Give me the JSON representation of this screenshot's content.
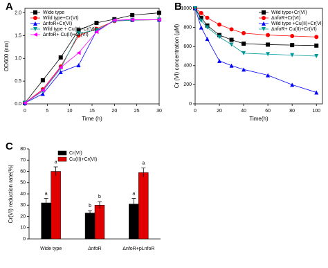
{
  "chart_data": [
    {
      "type": "line",
      "label": "A",
      "xlabel": "Time (h)",
      "ylabel": "OD600 (nm)",
      "x": [
        0,
        4,
        8,
        12,
        16,
        20,
        24,
        30
      ],
      "xlim": [
        0,
        30
      ],
      "xticks": [
        0,
        5,
        10,
        15,
        20,
        25,
        30
      ],
      "ylim": [
        0,
        2.1
      ],
      "yticks": [
        {
          "value": 0,
          "label": "0.0"
        },
        {
          "value": 0.5,
          "label": "0.5"
        },
        {
          "value": 1,
          "label": "1.0"
        },
        {
          "value": 1.5,
          "label": "1.5"
        },
        {
          "value": 2,
          "label": "2.0"
        }
      ],
      "legend": "upper left",
      "series": [
        {
          "name": "Wide type",
          "color": "#000000",
          "marker": "square",
          "values": [
            0.02,
            0.52,
            1.02,
            1.62,
            1.78,
            1.86,
            1.95,
            2.0
          ]
        },
        {
          "name": "Wild type+Cr(VI)",
          "color": "#ff0000",
          "marker": "circle",
          "values": [
            0.02,
            0.32,
            0.82,
            1.5,
            1.65,
            1.82,
            1.84,
            1.85
          ]
        },
        {
          "name": "ΔnfoR+Cr(VI)",
          "color": "#0000ff",
          "marker": "triangle-up",
          "values": [
            0.02,
            0.22,
            0.7,
            0.85,
            1.6,
            1.84,
            1.85,
            1.85
          ]
        },
        {
          "name": "Wild type + Cu(II)+Cr(VI)",
          "color": "#009999",
          "marker": "triangle-down",
          "values": [
            0.02,
            0.28,
            0.78,
            1.55,
            1.62,
            1.82,
            1.84,
            1.85
          ]
        },
        {
          "name": "ΔnfoR+ Cu(II)+Cr(VI)",
          "color": "#ff00ff",
          "marker": "triangle-left",
          "values": [
            0.02,
            0.3,
            0.8,
            1.12,
            1.58,
            1.84,
            1.85,
            1.85
          ]
        }
      ]
    },
    {
      "type": "line",
      "label": "B",
      "xlabel": "Time(h)",
      "ylabel": "Cr (VI) concentration (μM)",
      "x": [
        0,
        5,
        10,
        20,
        30,
        40,
        60,
        80,
        100
      ],
      "xlim": [
        0,
        105
      ],
      "xticks": [
        0,
        20,
        40,
        60,
        80,
        100
      ],
      "ylim": [
        0,
        1000
      ],
      "yticks": [
        0,
        200,
        400,
        600,
        800,
        1000
      ],
      "legend": "upper right",
      "series": [
        {
          "name": "Wild type+Cr(VI)",
          "color": "#000000",
          "marker": "square",
          "values": [
            1000,
            900,
            820,
            720,
            670,
            630,
            620,
            615,
            610
          ]
        },
        {
          "name": "ΔnfoR+Cr(VI)",
          "color": "#ff0000",
          "marker": "circle",
          "values": [
            1000,
            950,
            900,
            830,
            780,
            740,
            720,
            710,
            700
          ]
        },
        {
          "name": "Wild type +Cu(II)+Cr(VI)",
          "color": "#0000ff",
          "marker": "triangle-up",
          "values": [
            1000,
            800,
            680,
            450,
            400,
            360,
            300,
            200,
            120
          ]
        },
        {
          "name": "ΔnfoR+ Cu(II)+Cr(VI)",
          "color": "#009999",
          "marker": "triangle-down",
          "values": [
            1000,
            870,
            800,
            700,
            620,
            530,
            520,
            510,
            500
          ]
        }
      ]
    },
    {
      "type": "bar",
      "label": "C",
      "ylabel": "Cr(VI) reduction rate(%)",
      "categories": [
        "Wide type",
        "ΔnfoR",
        "ΔnfoR+pLnfoR"
      ],
      "ylim": [
        0,
        80
      ],
      "yticks": [
        0,
        10,
        20,
        30,
        40,
        50,
        60,
        70,
        80
      ],
      "legend": "upper left",
      "series": [
        {
          "name": "Cr(VI)",
          "color": "#000000",
          "values": [
            32,
            23,
            31
          ],
          "errors": [
            4,
            2,
            5
          ],
          "annotations": [
            "a",
            "b",
            "a"
          ]
        },
        {
          "name": "Cu(II)+Cr(VI)",
          "color": "#e00000",
          "values": [
            60,
            30,
            59
          ],
          "errors": [
            4,
            3,
            4
          ],
          "annotations": [
            "a",
            "b",
            "a"
          ]
        }
      ]
    }
  ]
}
